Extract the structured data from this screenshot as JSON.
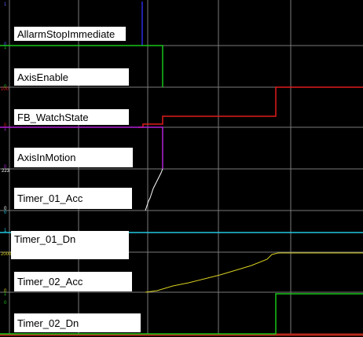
{
  "colors": {
    "background": "#000000",
    "grid": "#7a7a7a",
    "label_background": "#ffffff",
    "AllarmStopImmediate": "#2a2ae0",
    "AxisEnable": "#19c419",
    "FB_WatchState": "#e01a1a",
    "AxisInMotion": "#b020d6",
    "Timer_01_Acc": "#ffffff",
    "Timer_01_Dn": "#22c8e0",
    "Timer_02_Acc": "#d8d020",
    "Timer_02_Dn": "#19c419",
    "bottom_strip": "#b8281c"
  },
  "signals": [
    {
      "name": "AllarmStopImmediate",
      "max_tick": "1",
      "min_tick": "0"
    },
    {
      "name": "AxisEnable",
      "max_tick": "1",
      "min_tick": "0"
    },
    {
      "name": "FB_WatchState",
      "max_tick": "100",
      "min_tick": "0"
    },
    {
      "name": "AxisInMotion",
      "max_tick": "1",
      "min_tick": "0"
    },
    {
      "name": "Timer_01_Acc",
      "max_tick": "223",
      "min_tick": "0"
    },
    {
      "name": "Timer_01_Dn",
      "max_tick": "1",
      "min_tick": "0"
    },
    {
      "name": "Timer_02_Acc",
      "max_tick": "2000",
      "min_tick": "0"
    },
    {
      "name": "Timer_02_Dn",
      "max_tick": "1",
      "min_tick": "0"
    }
  ]
}
